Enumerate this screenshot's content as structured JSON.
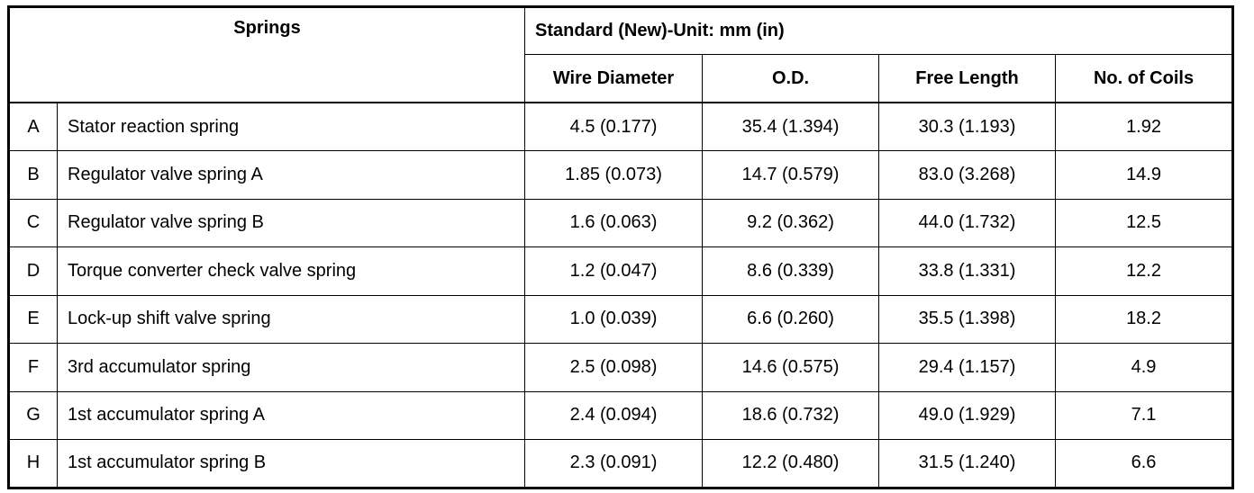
{
  "header": {
    "springs": "Springs",
    "standard": "Standard (New)-Unit: mm (in)",
    "columns": [
      "Wire Diameter",
      "O.D.",
      "Free Length",
      "No. of Coils"
    ]
  },
  "rows": [
    [
      "A",
      "Stator reaction spring",
      "4.5 (0.177)",
      "35.4 (1.394)",
      "30.3 (1.193)",
      "1.92"
    ],
    [
      "B",
      "Regulator valve spring A",
      "1.85 (0.073)",
      "14.7 (0.579)",
      "83.0 (3.268)",
      "14.9"
    ],
    [
      "C",
      "Regulator valve spring B",
      "1.6 (0.063)",
      "9.2 (0.362)",
      "44.0 (1.732)",
      "12.5"
    ],
    [
      "D",
      "Torque converter check valve spring",
      "1.2 (0.047)",
      "8.6 (0.339)",
      "33.8 (1.331)",
      "12.2"
    ],
    [
      "E",
      "Lock-up shift valve spring",
      "1.0 (0.039)",
      "6.6 (0.260)",
      "35.5 (1.398)",
      "18.2"
    ],
    [
      "F",
      "3rd accumulator spring",
      "2.5 (0.098)",
      "14.6 (0.575)",
      "29.4 (1.157)",
      "4.9"
    ],
    [
      "G",
      "1st accumulator spring A",
      "2.4 (0.094)",
      "18.6 (0.732)",
      "49.0 (1.929)",
      "7.1"
    ],
    [
      "H",
      "1st accumulator spring B",
      "2.3 (0.091)",
      "12.2 (0.480)",
      "31.5 (1.240)",
      "6.6"
    ]
  ]
}
